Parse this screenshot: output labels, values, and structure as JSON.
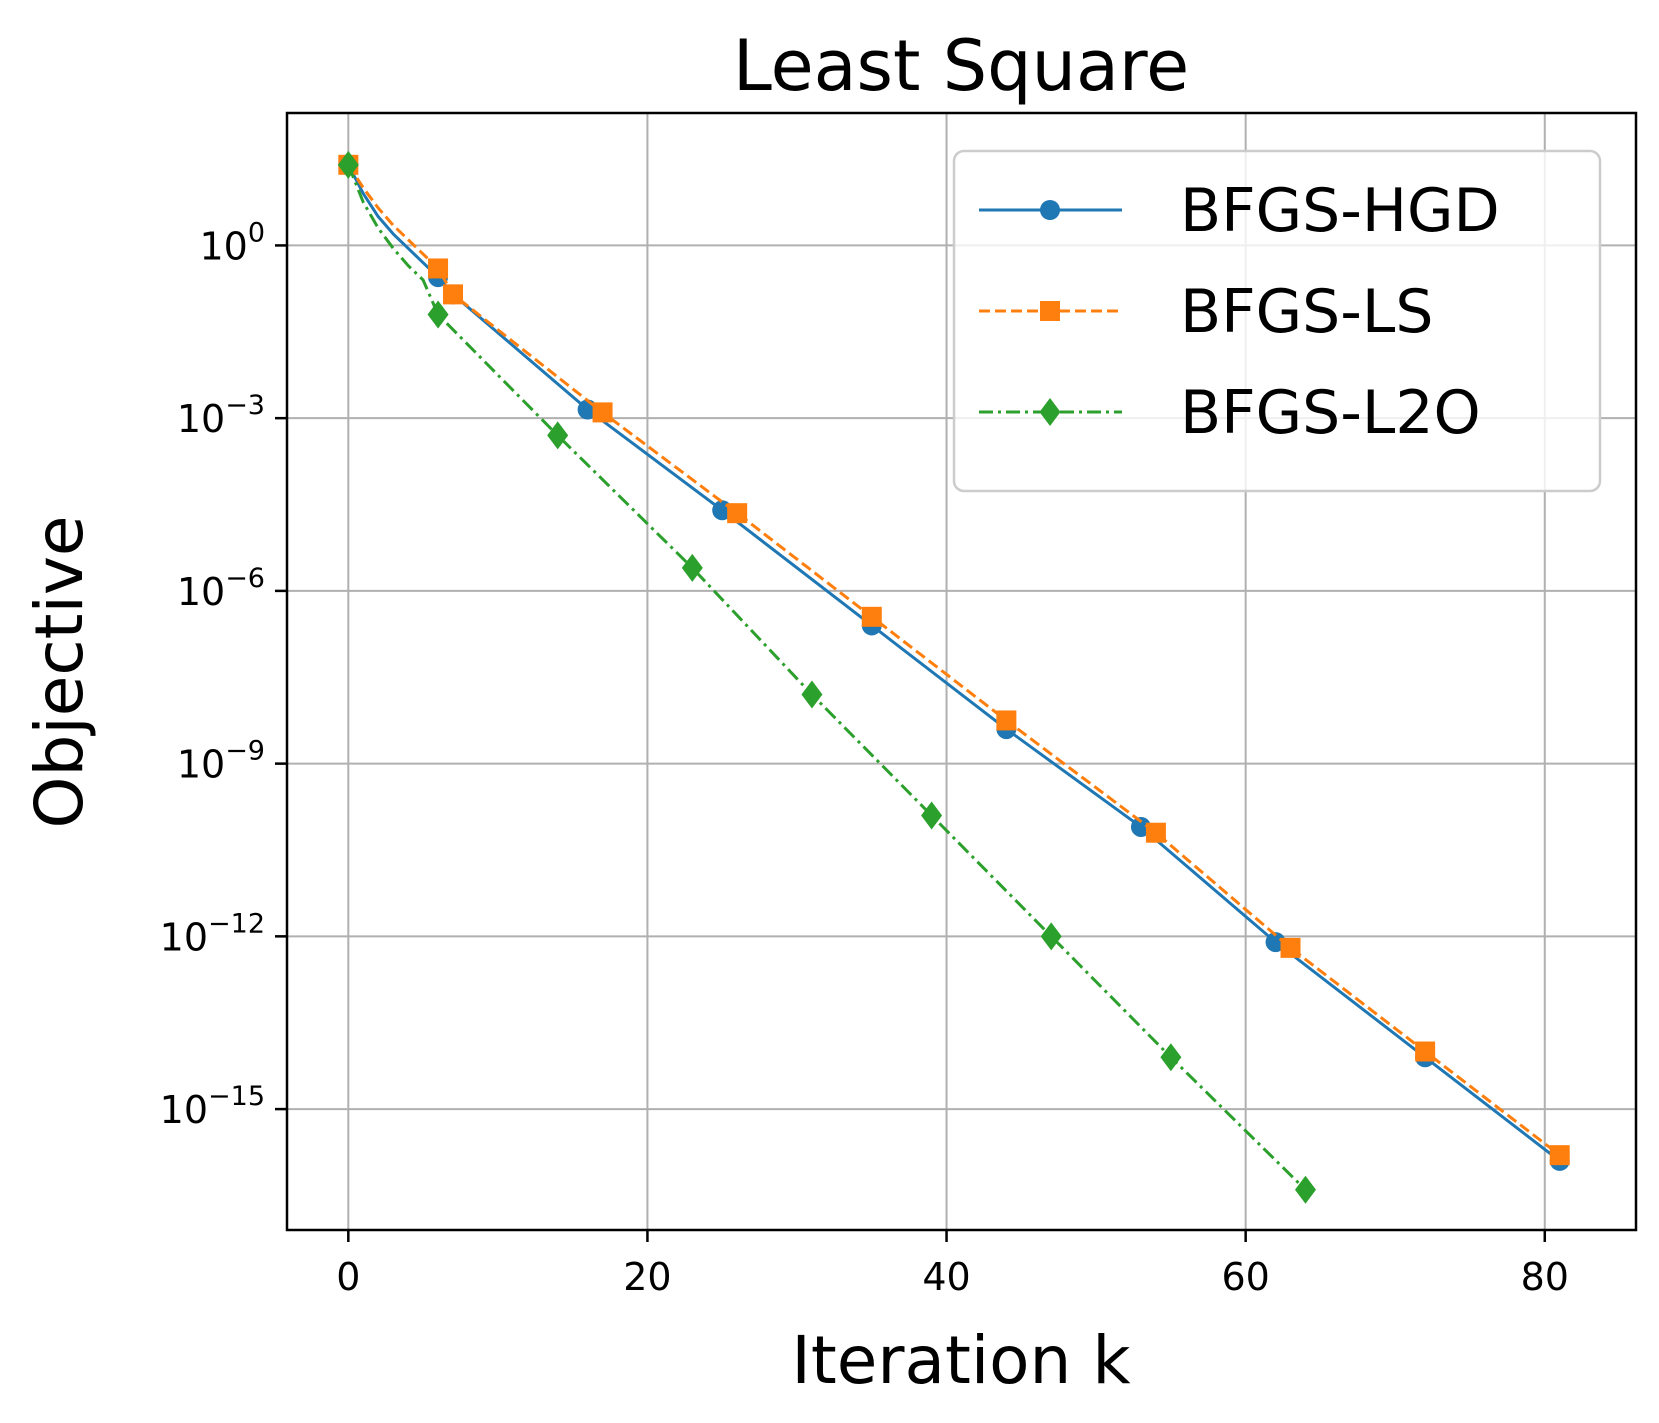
{
  "chart_data": {
    "type": "line",
    "title": "Least Square",
    "xlabel": "Iteration k",
    "ylabel": "Objective",
    "xscale": "linear",
    "yscale": "log",
    "xlim": [
      -4.1,
      86.1
    ],
    "ylim_log10": [
      -17.1,
      2.3
    ],
    "x_ticks": [
      {
        "value": 0,
        "label": "0"
      },
      {
        "value": 20,
        "label": "20"
      },
      {
        "value": 40,
        "label": "40"
      },
      {
        "value": 60,
        "label": "60"
      },
      {
        "value": 80,
        "label": "80"
      }
    ],
    "y_ticks": [
      {
        "exp": 0,
        "base": "10",
        "sup": "0"
      },
      {
        "exp": -3,
        "base": "10",
        "sup": "−3"
      },
      {
        "exp": -6,
        "base": "10",
        "sup": "−6"
      },
      {
        "exp": -9,
        "base": "10",
        "sup": "−9"
      },
      {
        "exp": -12,
        "base": "10",
        "sup": "−12"
      },
      {
        "exp": -15,
        "base": "10",
        "sup": "−15"
      }
    ],
    "grid": true,
    "legend_position": "top-right",
    "series": [
      {
        "name": "BFGS-HGD",
        "color": "#1f77b4",
        "dash": "solid",
        "marker": "circle",
        "x": [
          0,
          1,
          2,
          3,
          4,
          5,
          6,
          7,
          16,
          25,
          35,
          44,
          53,
          62,
          72,
          81
        ],
        "log10_y": [
          1.4,
          0.9,
          0.5,
          0.2,
          -0.05,
          -0.3,
          -0.55,
          -0.85,
          -2.85,
          -4.6,
          -6.6,
          -8.4,
          -10.1,
          -12.1,
          -14.1,
          -15.9
        ]
      },
      {
        "name": "BFGS-LS",
        "color": "#ff7f0e",
        "dash": "dashed",
        "marker": "square",
        "x": [
          0,
          1,
          2,
          3,
          4,
          5,
          6,
          7,
          17,
          26,
          35,
          44,
          54,
          63,
          72,
          81
        ],
        "log10_y": [
          1.4,
          1.0,
          0.65,
          0.35,
          0.1,
          -0.15,
          -0.4,
          -0.85,
          -2.9,
          -4.65,
          -6.45,
          -8.25,
          -10.2,
          -12.2,
          -14.0,
          -15.8
        ]
      },
      {
        "name": "BFGS-L2O",
        "color": "#2ca02c",
        "dash": "dashdot",
        "marker": "diamond",
        "x": [
          0,
          1,
          2,
          3,
          4,
          5,
          6,
          14,
          23,
          31,
          39,
          47,
          55,
          64
        ],
        "log10_y": [
          1.4,
          0.75,
          0.3,
          -0.05,
          -0.35,
          -0.6,
          -1.2,
          -3.3,
          -5.6,
          -7.8,
          -9.9,
          -12.0,
          -14.1,
          -16.4
        ]
      }
    ]
  }
}
